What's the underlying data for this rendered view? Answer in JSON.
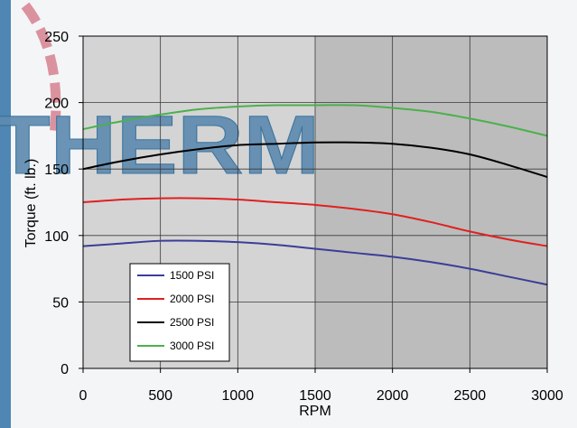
{
  "watermark": {
    "text": "THERM",
    "fill_color": "#5f8bb0",
    "stroke_color": "#2f6d99",
    "accent_color": "#d98a98"
  },
  "colors": {
    "plot_background_light": "#d4d4d4",
    "plot_background_dark": "#bcbcbc",
    "grid": "#3a3a3a"
  },
  "chart_data": {
    "type": "line",
    "xlabel": "RPM",
    "ylabel": "Torque (ft. lb.)",
    "xlim": [
      0,
      3000
    ],
    "ylim": [
      0,
      250
    ],
    "xticks": [
      0,
      500,
      1000,
      1500,
      2000,
      2500,
      3000
    ],
    "yticks": [
      0,
      50,
      100,
      150,
      200,
      250
    ],
    "grid": true,
    "legend_position": "bottom-left",
    "x": [
      0,
      250,
      500,
      750,
      1000,
      1250,
      1500,
      1750,
      2000,
      2250,
      2500,
      2750,
      3000
    ],
    "series": [
      {
        "name": "1500 PSI",
        "color": "#3b3d99",
        "values": [
          92,
          94,
          96,
          96,
          95,
          93,
          90,
          87,
          84,
          80,
          75,
          69,
          63
        ]
      },
      {
        "name": "2000 PSI",
        "color": "#e02020",
        "values": [
          125,
          127,
          128,
          128,
          127,
          125,
          123,
          120,
          116,
          110,
          103,
          97,
          92
        ]
      },
      {
        "name": "2500 PSI",
        "color": "#000000",
        "values": [
          150,
          156,
          161,
          165,
          168,
          169,
          170,
          170,
          169,
          166,
          161,
          153,
          144
        ]
      },
      {
        "name": "3000 PSI",
        "color": "#4cb04c",
        "values": [
          180,
          186,
          191,
          195,
          197,
          198,
          198,
          198,
          196,
          193,
          188,
          182,
          175
        ]
      }
    ]
  }
}
